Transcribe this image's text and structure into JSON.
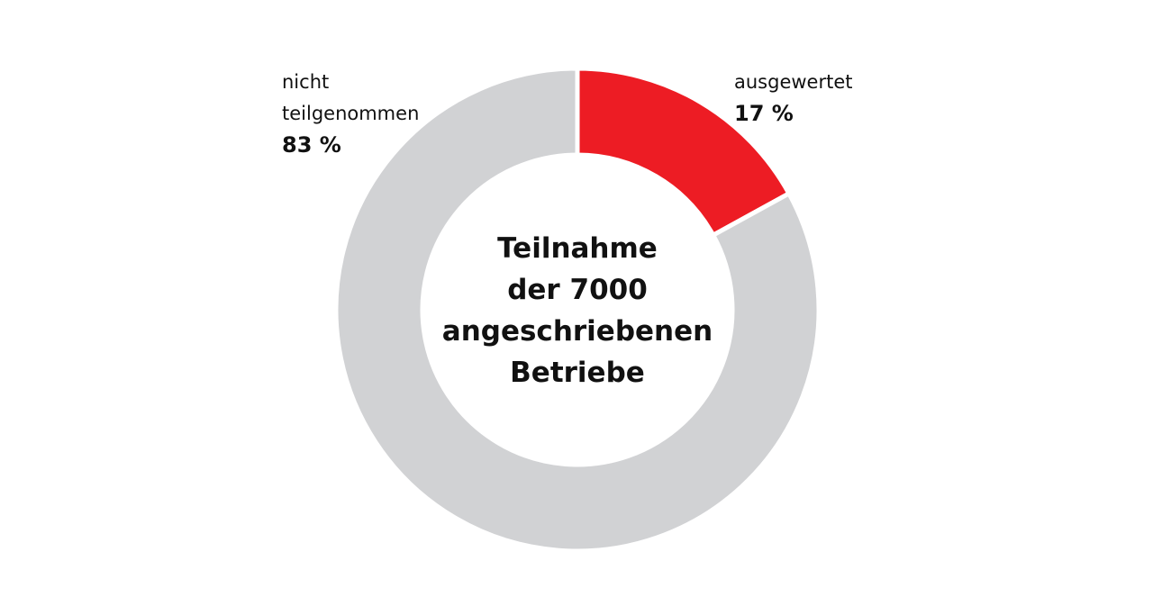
{
  "chart_data": {
    "type": "donut",
    "title": "Teilnahme\nder 7000\nangeschriebenen\nBetriebe",
    "categories": [
      "ausgewertet",
      "nicht teilgenommen"
    ],
    "values": [
      17,
      83
    ],
    "value_labels": [
      "17 %",
      "83 %"
    ],
    "colors": [
      "#ed1c24",
      "#d1d2d4"
    ]
  }
}
